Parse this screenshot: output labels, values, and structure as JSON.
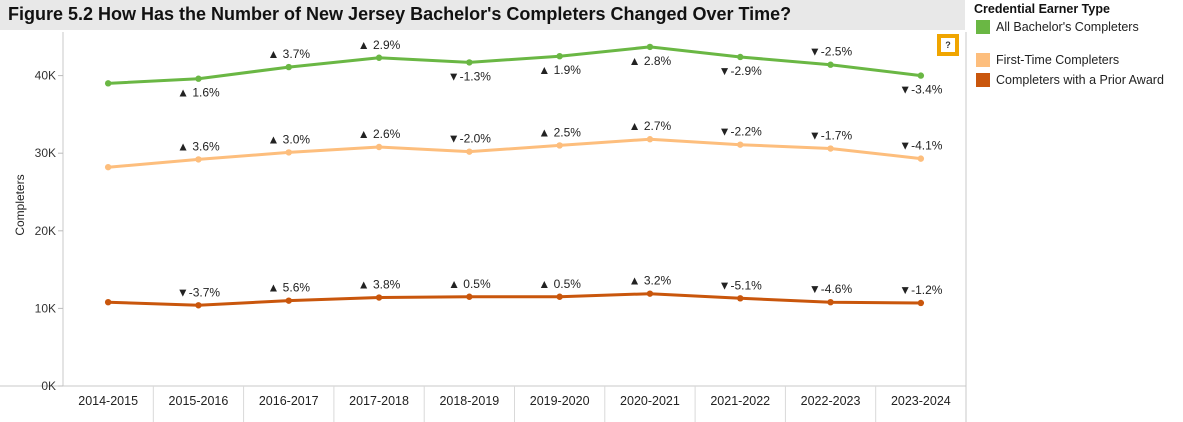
{
  "title": "Figure 5.2 How Has the Number of New Jersey Bachelor's Completers Changed Over Time?",
  "help_badge": "?",
  "legend": {
    "title": "Credential Earner Type",
    "items": [
      {
        "label": "All Bachelor's Completers",
        "color": "#6ab744"
      },
      {
        "label": "First-Time Completers",
        "color": "#fdbe7d"
      },
      {
        "label": "Completers with a Prior Award",
        "color": "#c9560c"
      }
    ]
  },
  "chart_data": {
    "type": "line",
    "title": "Figure 5.2 How Has the Number of New Jersey Bachelor's Completers Changed Over Time?",
    "xlabel": "",
    "ylabel": "Completers",
    "categories": [
      "2014-2015",
      "2015-2016",
      "2016-2017",
      "2017-2018",
      "2018-2019",
      "2019-2020",
      "2020-2021",
      "2021-2022",
      "2022-2023",
      "2023-2024"
    ],
    "ylim": [
      0,
      45000
    ],
    "yticks": [
      0,
      10000,
      20000,
      30000,
      40000
    ],
    "ytick_labels": [
      "0K",
      "10K",
      "20K",
      "30K",
      "40K"
    ],
    "grid": false,
    "legend_position": "right",
    "series": [
      {
        "name": "All Bachelor's Completers",
        "color": "#6ab744",
        "values": [
          39000,
          39600,
          41100,
          42300,
          41700,
          42500,
          43700,
          42400,
          41400,
          40000
        ],
        "labels": [
          "",
          "▲ 1.6%",
          "▲ 3.7%",
          "▲ 2.9%",
          "▼-1.3%",
          "▲ 1.9%",
          "▲ 2.8%",
          "▼-2.9%",
          "▼-2.5%",
          "▼-3.4%"
        ],
        "label_pos": [
          "",
          "below",
          "above",
          "above",
          "below",
          "below",
          "below",
          "below",
          "above",
          "below"
        ]
      },
      {
        "name": "First-Time Completers",
        "color": "#fdbe7d",
        "values": [
          28200,
          29200,
          30100,
          30800,
          30200,
          31000,
          31800,
          31100,
          30600,
          29300
        ],
        "labels": [
          "",
          "▲ 3.6%",
          "▲ 3.0%",
          "▲ 2.6%",
          "▼-2.0%",
          "▲ 2.5%",
          "▲ 2.7%",
          "▼-2.2%",
          "▼-1.7%",
          "▼-4.1%"
        ],
        "label_pos": [
          "",
          "above",
          "above",
          "above",
          "above",
          "above",
          "above",
          "above",
          "above",
          "above"
        ]
      },
      {
        "name": "Completers with a Prior Award",
        "color": "#c9560c",
        "values": [
          10800,
          10400,
          11000,
          11400,
          11500,
          11500,
          11900,
          11300,
          10800,
          10700
        ],
        "labels": [
          "",
          "▼-3.7%",
          "▲ 5.6%",
          "▲ 3.8%",
          "▲ 0.5%",
          "▲ 0.5%",
          "▲ 3.2%",
          "▼-5.1%",
          "▼-4.6%",
          "▼-1.2%"
        ],
        "label_pos": [
          "",
          "above",
          "above",
          "above",
          "above",
          "above",
          "above",
          "above",
          "above",
          "above"
        ]
      }
    ]
  }
}
